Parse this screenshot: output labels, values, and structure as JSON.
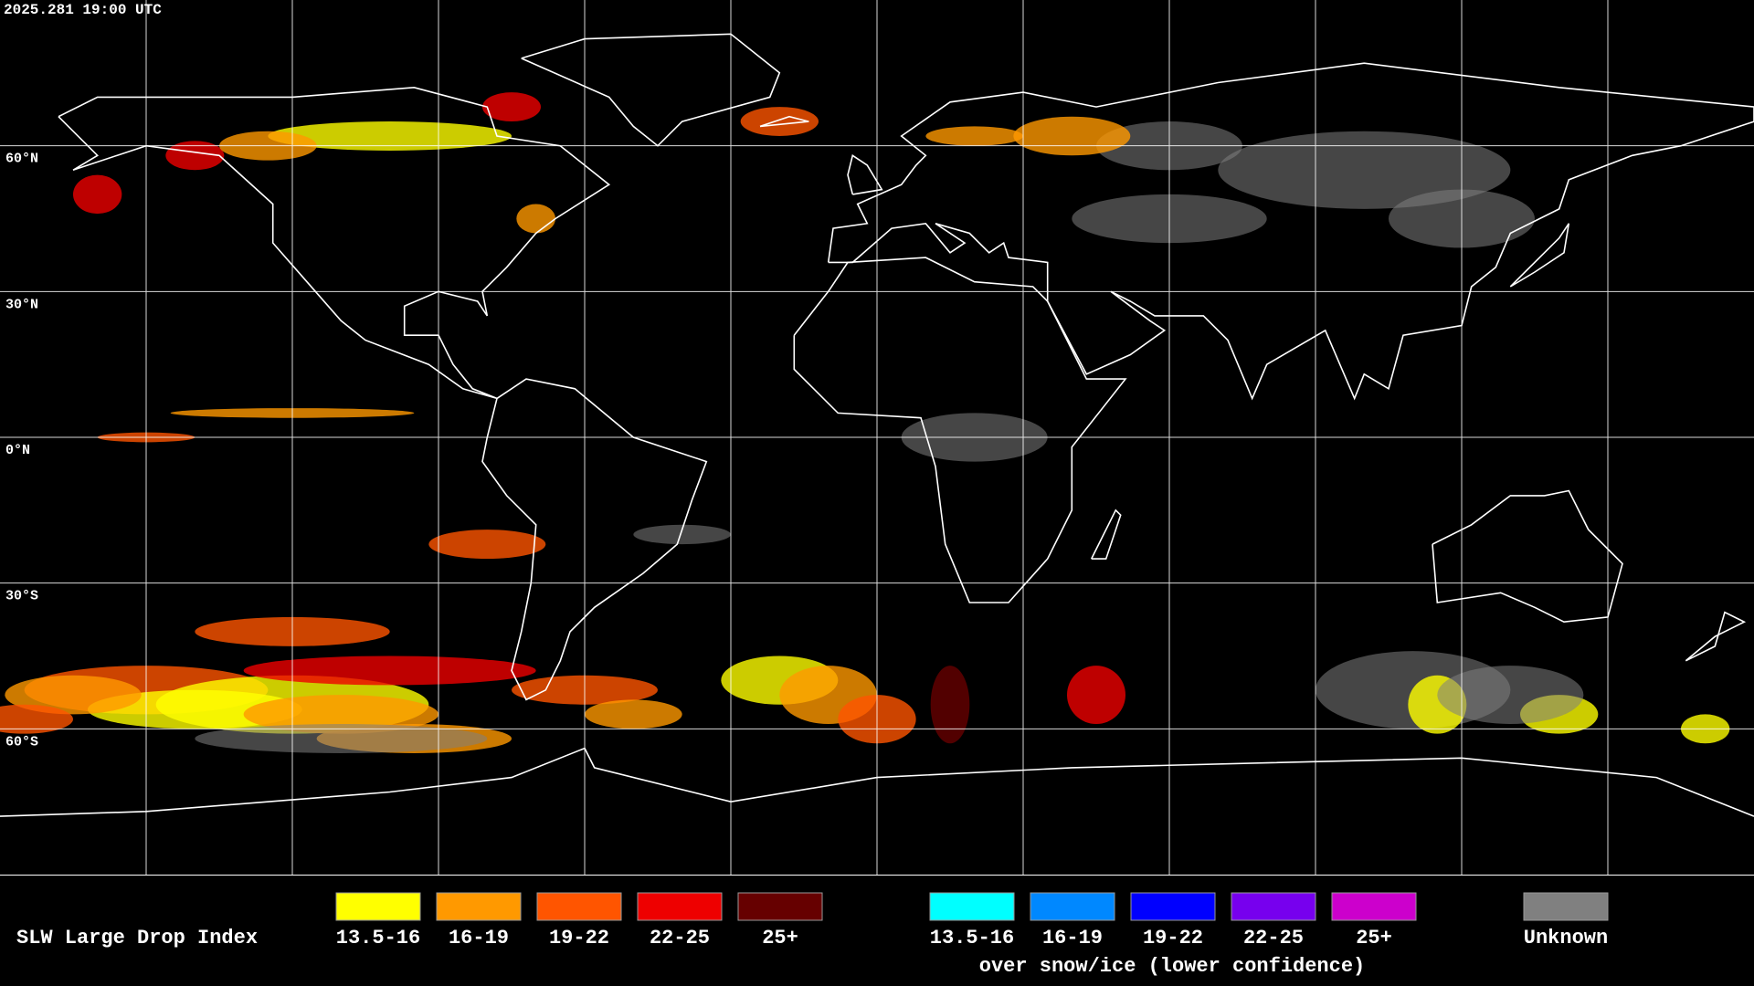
{
  "header": {
    "timestamp": "2025.281 19:00 UTC"
  },
  "map": {
    "latitude_labels": [
      "60°N",
      "30°N",
      "0°N",
      "30°S",
      "60°S"
    ]
  },
  "legend": {
    "title": "SLW Large Drop Index",
    "items": [
      {
        "label": "13.5-16",
        "color": "#ffff00"
      },
      {
        "label": "16-19",
        "color": "#ff9900"
      },
      {
        "label": "19-22",
        "color": "#ff5500"
      },
      {
        "label": "22-25",
        "color": "#ee0000"
      },
      {
        "label": "25+",
        "color": "#660000"
      }
    ],
    "snow_items": [
      {
        "label": "13.5-16",
        "color": "#00ffff"
      },
      {
        "label": "16-19",
        "color": "#0088ff"
      },
      {
        "label": "19-22",
        "color": "#0000ff"
      },
      {
        "label": "22-25",
        "color": "#7700ee"
      },
      {
        "label": "25+",
        "color": "#cc00cc"
      }
    ],
    "snow_caption": "over snow/ice (lower confidence)",
    "unknown": {
      "label": "Unknown",
      "color": "#808080"
    }
  }
}
